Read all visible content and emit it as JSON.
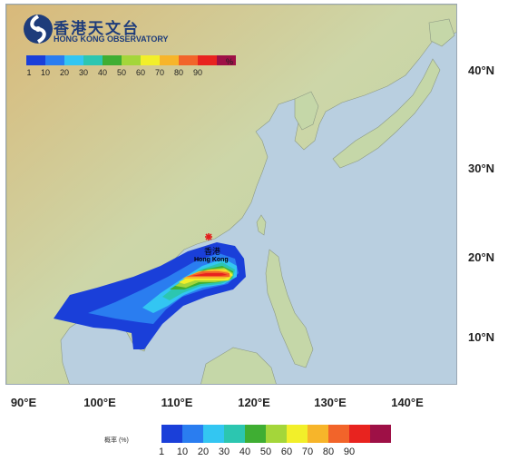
{
  "logo": {
    "name_zh": "香港天文台",
    "name_en": "HONG KONG OBSERVATORY",
    "icon": "observatory-emblem-icon"
  },
  "map": {
    "land_color": "#d8dcc0",
    "sea_color": "#b9cfe0",
    "city_marker_color": "#e31d1d",
    "city_name_zh": "香港",
    "city_name_en": "Hong Kong",
    "lat_labels": [
      "40°N",
      "30°N",
      "20°N",
      "10°N"
    ],
    "lon_labels": [
      "90°E",
      "100°E",
      "110°E",
      "120°E",
      "130°E",
      "140°E"
    ]
  },
  "top_legend": {
    "ticks": [
      "1",
      "10",
      "20",
      "30",
      "40",
      "50",
      "60",
      "70",
      "80",
      "90"
    ],
    "unit": "%"
  },
  "bottom_legend": {
    "title": "概率 (%)",
    "ticks": [
      "1",
      "10",
      "20",
      "30",
      "40",
      "50",
      "60",
      "70",
      "80",
      "90"
    ]
  },
  "probability_colors": [
    "#1a3fd9",
    "#2a7df0",
    "#33c6f2",
    "#2cc6b0",
    "#3fae33",
    "#a4d63a",
    "#f2ef2a",
    "#f7b52a",
    "#f2642a",
    "#e8231f",
    "#9e1046"
  ]
}
